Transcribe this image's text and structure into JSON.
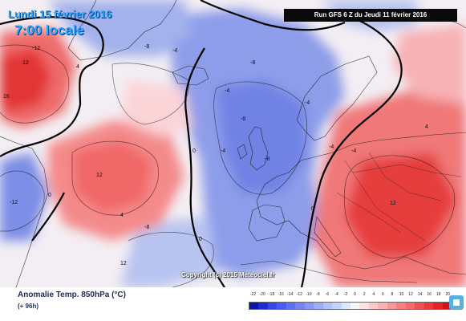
{
  "map_title": {
    "date": "Lundi 15 février 2016",
    "hour": "7:00 locale"
  },
  "run_info": "Run GFS 6 Z du Jeudi 11 février 2016",
  "copyright": "Copyright (c) 2015 Meteociel.fr",
  "footer": {
    "variable": "Anomalie Temp. 850hPa (°C)",
    "horizon": "(+ 96h)"
  },
  "legend": {
    "ticks": [
      "-22",
      "-20",
      "-18",
      "-16",
      "-14",
      "-12",
      "-10",
      "-8",
      "-6",
      "-4",
      "-2",
      "0",
      "2",
      "4",
      "6",
      "8",
      "10",
      "12",
      "14",
      "16",
      "18",
      "20"
    ],
    "colors": [
      "#0b16a8",
      "#1f2bd0",
      "#3846e8",
      "#4c5cf0",
      "#6070f2",
      "#7484f4",
      "#8898f6",
      "#9cacf8",
      "#b0c0fa",
      "#c4d2fb",
      "#dce6fd",
      "#f6f6f6",
      "#fde2e4",
      "#fcc8cc",
      "#fab0b4",
      "#f89898",
      "#f68080",
      "#f36868",
      "#f05050",
      "#ec3a3a",
      "#e42424",
      "#d41010"
    ]
  },
  "contour_labels": [
    "-12",
    "12",
    "16",
    "-8",
    "-4",
    "12",
    "-8",
    "-4",
    "-8",
    "-4",
    "-4",
    "-4",
    "12",
    "0",
    "0",
    "-8",
    "-12",
    "0",
    "-4",
    "4",
    "4",
    "-8",
    "12",
    "4",
    "0"
  ],
  "map_colors": {
    "ocean_blue": "#8fa0ea",
    "deep_blue": "#5f72e2",
    "warm_red": "#f07070",
    "hot_red": "#e03030",
    "neutral": "#f3eef3",
    "contour": "#000000",
    "frame": "#bfe3f2"
  }
}
